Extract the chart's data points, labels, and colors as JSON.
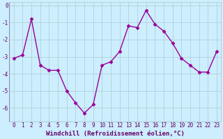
{
  "x": [
    0,
    1,
    2,
    3,
    4,
    5,
    6,
    7,
    8,
    9,
    10,
    11,
    12,
    13,
    14,
    15,
    16,
    17,
    18,
    19,
    20,
    21,
    22,
    23
  ],
  "y": [
    -3.1,
    -2.9,
    -0.8,
    -3.5,
    -3.8,
    -3.8,
    -5.0,
    -5.7,
    -6.3,
    -5.8,
    -3.5,
    -3.3,
    -2.7,
    -1.2,
    -1.3,
    -0.3,
    -1.1,
    -1.5,
    -2.2,
    -3.1,
    -3.5,
    -3.9,
    -3.9,
    -2.7
  ],
  "line_color": "#990099",
  "marker": "D",
  "marker_size": 2.5,
  "bg_color": "#cceeff",
  "grid_color": "#aacccc",
  "xlabel": "Windchill (Refroidissement éolien,°C)",
  "ylim": [
    -6.8,
    0.2
  ],
  "xlim": [
    -0.5,
    23.5
  ],
  "yticks": [
    0,
    -1,
    -2,
    -3,
    -4,
    -5,
    -6
  ],
  "xticks": [
    0,
    1,
    2,
    3,
    4,
    5,
    6,
    7,
    8,
    9,
    10,
    11,
    12,
    13,
    14,
    15,
    16,
    17,
    18,
    19,
    20,
    21,
    22,
    23
  ],
  "xlabel_fontsize": 6.5,
  "tick_fontsize": 5.5,
  "line_width": 1.0,
  "label_color": "#660066"
}
